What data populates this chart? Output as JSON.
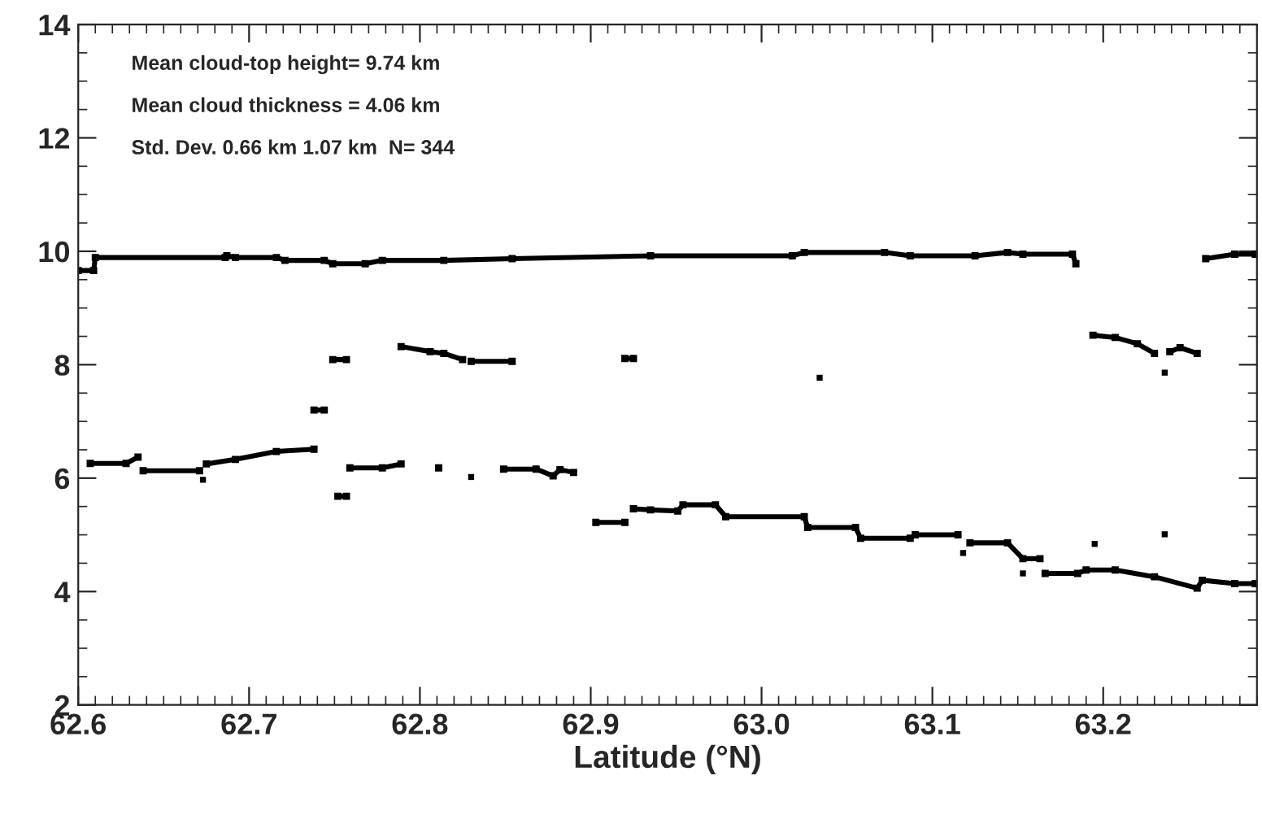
{
  "chart_data": {
    "type": "line",
    "xlabel": "Latitude (°N)",
    "annotations": [
      "Mean cloud-top height= 9.74 km",
      "Mean cloud thickness = 4.06 km",
      "Std. Dev. 0.66 km 1.07 km  N= 344"
    ],
    "xlim": [
      62.6,
      63.29
    ],
    "ylim": [
      2,
      14
    ],
    "xticks": [
      62.6,
      62.7,
      62.8,
      62.9,
      {
        "value": 63.0,
        "label": "63.0"
      },
      63.1,
      63.2
    ],
    "yticks": [
      2,
      4,
      6,
      8,
      10,
      12,
      14
    ],
    "grid": false,
    "marker": "square",
    "line_style": "solid",
    "series": [
      {
        "color": "#000000",
        "x": [
          62.6,
          62.609,
          62.61,
          62.686,
          62.687,
          62.692,
          62.716,
          62.721,
          62.744,
          62.749,
          62.768,
          62.778,
          62.814,
          62.854,
          62.935,
          63.018,
          63.025,
          63.072,
          63.087,
          63.125,
          63.144,
          63.153,
          63.182,
          63.184,
          63.22,
          63.26,
          63.277,
          63.289
        ],
        "values": [
          9.66,
          9.66,
          9.89,
          9.89,
          9.92,
          9.89,
          9.89,
          9.84,
          9.84,
          9.78,
          9.78,
          9.84,
          9.84,
          9.87,
          9.92,
          9.92,
          9.98,
          9.98,
          9.92,
          9.92,
          9.98,
          9.95,
          9.95,
          9.78,
          null,
          9.87,
          9.95,
          9.95
        ]
      },
      {
        "color": "#000000",
        "x": [
          62.738,
          62.744,
          62.746,
          62.749,
          62.757,
          62.77,
          62.789,
          62.806,
          62.814,
          62.825,
          62.827,
          62.83,
          62.854,
          62.88,
          62.92,
          62.925,
          62.98,
          63.1,
          63.194,
          63.207,
          63.22,
          63.23,
          63.232,
          63.239,
          63.245,
          63.255
        ],
        "values": [
          7.2,
          7.2,
          null,
          8.09,
          8.09,
          null,
          8.32,
          8.23,
          8.2,
          8.09,
          null,
          8.06,
          8.06,
          null,
          8.11,
          8.11,
          null,
          null,
          8.52,
          8.48,
          8.37,
          8.2,
          null,
          8.23,
          8.3,
          8.2
        ]
      },
      {
        "color": "#000000",
        "x": [
          62.607,
          62.628,
          62.635,
          62.636,
          62.638,
          62.671,
          62.672,
          62.675,
          62.692,
          62.716,
          62.738,
          62.745,
          62.752,
          62.757,
          62.758,
          62.759,
          62.778,
          62.789,
          62.8,
          62.811,
          62.812,
          62.849,
          62.868,
          62.878,
          62.882,
          62.89,
          62.9,
          62.903,
          62.92,
          62.922,
          62.925,
          62.935,
          62.951,
          62.954,
          62.973,
          62.979,
          63.025,
          63.027,
          63.055,
          63.058,
          63.087,
          63.09,
          63.115,
          63.117,
          63.122,
          63.144,
          63.153,
          63.163,
          63.164,
          63.166,
          63.185,
          63.19,
          63.207,
          63.23,
          63.255,
          63.258,
          63.277,
          63.289
        ],
        "values": [
          6.26,
          6.26,
          6.37,
          null,
          6.13,
          6.13,
          null,
          6.25,
          6.33,
          6.47,
          6.51,
          null,
          5.68,
          5.68,
          null,
          6.18,
          6.18,
          6.25,
          null,
          6.18,
          null,
          6.16,
          6.16,
          6.04,
          6.15,
          6.1,
          null,
          5.22,
          5.22,
          null,
          5.46,
          5.44,
          5.42,
          5.53,
          5.53,
          5.32,
          5.32,
          5.13,
          5.13,
          4.94,
          4.94,
          5.0,
          5.0,
          null,
          4.86,
          4.86,
          4.58,
          4.58,
          null,
          4.32,
          4.32,
          4.38,
          4.38,
          4.26,
          4.06,
          4.2,
          4.14,
          4.14
        ]
      },
      {
        "type": "scatter",
        "color": "#000000",
        "x": [
          62.673,
          62.83,
          63.034,
          63.118,
          63.153,
          63.195,
          63.236,
          63.236
        ],
        "values": [
          5.97,
          6.02,
          7.77,
          4.68,
          4.32,
          4.84,
          5.01,
          7.86
        ]
      }
    ]
  }
}
